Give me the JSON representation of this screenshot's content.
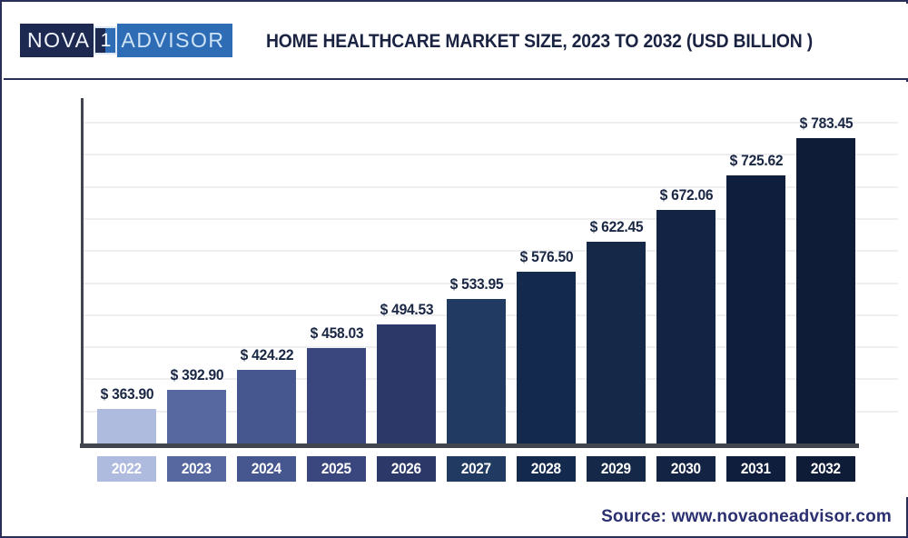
{
  "header": {
    "logo": {
      "part1": "NOVA",
      "part2": "1",
      "part3": "ADVISOR"
    },
    "title": "HOME HEALTHCARE MARKET SIZE, 2023 TO 2032 (USD BILLION )"
  },
  "chart_data": {
    "type": "bar",
    "title": "HOME HEALTHCARE MARKET SIZE, 2023 TO 2032 (USD BILLION )",
    "unit": "USD Billion",
    "categories": [
      "2022",
      "2023",
      "2024",
      "2025",
      "2026",
      "2027",
      "2028",
      "2029",
      "2030",
      "2031",
      "2032"
    ],
    "values": [
      363.9,
      392.9,
      424.22,
      458.03,
      494.53,
      533.95,
      576.5,
      622.45,
      672.06,
      725.62,
      783.45
    ],
    "value_labels": [
      "$ 363.90",
      "$ 392.90",
      "$ 424.22",
      "$ 458.03",
      "$ 494.53",
      "$ 533.95",
      "$ 576.50",
      "$ 622.45",
      "$ 672.06",
      "$ 725.62",
      "$ 783.45"
    ],
    "bar_colors": [
      "#aebade",
      "#56689f",
      "#46568f",
      "#3a477e",
      "#2c3968",
      "#213a62",
      "#14294e",
      "#152848",
      "#132343",
      "#0f1e3c",
      "#0e1c38"
    ],
    "ylim": [
      310,
      800
    ],
    "grid": true,
    "legend_position": "none",
    "y_axis_tick_labels_visible": false
  },
  "footer": {
    "source": "Source: www.novaoneadvisor.com"
  },
  "colors": {
    "accent_navy": "#1b2342",
    "axis": "#41454d",
    "gridline": "#efeff2",
    "logo_dark": "#1d2950",
    "logo_blue": "#2e6db6",
    "source_text": "#2a3070"
  }
}
